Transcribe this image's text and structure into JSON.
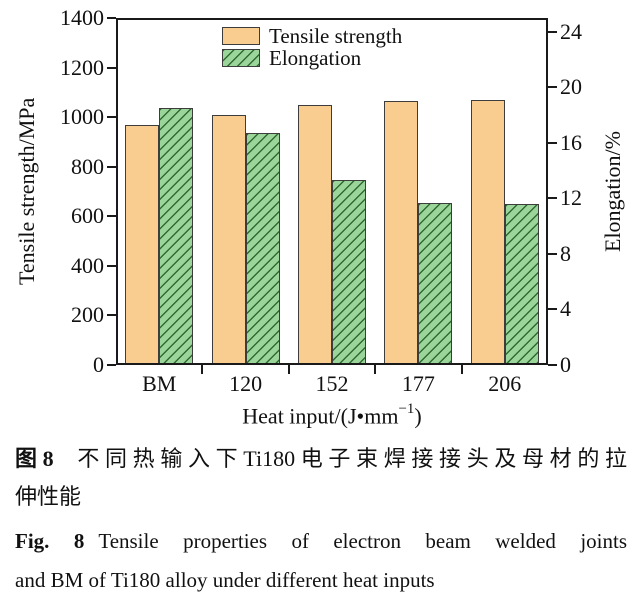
{
  "chart_data": {
    "type": "bar",
    "categories": [
      "BM",
      "120",
      "152",
      "177",
      "206"
    ],
    "series": [
      {
        "name": "Tensile strength",
        "axis": "left",
        "values": [
          970,
          1010,
          1050,
          1065,
          1070
        ],
        "pattern": "solid"
      },
      {
        "name": "Elongation",
        "axis": "right",
        "values": [
          18.5,
          16.7,
          13.3,
          11.7,
          11.6
        ],
        "pattern": "diagonal-hatch"
      }
    ],
    "left_axis": {
      "label": "Tensile strength/MPa",
      "min": 0,
      "max": 1400,
      "ticks": [
        0,
        200,
        400,
        600,
        800,
        1000,
        1200,
        1400
      ]
    },
    "right_axis": {
      "label": "Elongation/%",
      "min": 0,
      "max": 25,
      "ticks": [
        0,
        4,
        8,
        12,
        16,
        20,
        24
      ]
    },
    "x_axis": {
      "label_prefix": "Heat input/(J•mm",
      "label_sup": "−1",
      "label_suffix": ")"
    },
    "legend_position": "top-center",
    "grid": false
  },
  "captions": {
    "zh_label": "图8",
    "zh_line1": "不同热输入下Ti180电子束焊接接头及母材的拉",
    "zh_line2": "伸性能",
    "en_label": "Fig. 8",
    "en_line1": "Tensile properties of electron beam welded joints",
    "en_line2": "and BM of Ti180 alloy under different heat inputs"
  },
  "colors": {
    "tensile_fill": "#F9CD90",
    "elongation_fill": "#9CD59A",
    "hatch_line": "#2E6B33",
    "bar_border": "#3D3D3D",
    "axis": "#1A1A1A",
    "background": "#FFFFFF"
  }
}
